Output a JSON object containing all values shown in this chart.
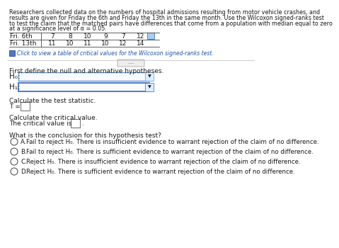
{
  "title_lines": [
    "Researchers collected data on the numbers of hospital admissions resulting from motor vehicle crashes, and",
    "results are given for Friday the 6th and Friday the 13th in the same month. Use the Wilcoxon signed-ranks test",
    "to test the claim that the matched pairs have differences that come from a population with median equal to zero",
    "at a significance level of α = 0.05."
  ],
  "table_row1_label": "Fri. 6th",
  "table_row2_label": "Fri. 13th",
  "table_row1_data": [
    "7",
    "8",
    "10",
    "9",
    "7",
    "12"
  ],
  "table_row2_data": [
    "11",
    "10",
    "11",
    "10",
    "12",
    "14"
  ],
  "click_text": "Click to view a table of critical values for the Wilcoxon signed-ranks test.",
  "hypotheses_intro": "First define the null and alternative hypotheses.",
  "h0_label": "H₀:",
  "h1_label": "H₁:",
  "test_stat_intro": "Calculate the test statistic.",
  "t_eq": "T =",
  "critical_intro": "Calculate the critical value.",
  "critical_value_text": "The critical value is",
  "conclusion_intro": "What is the conclusion for this hypothesis test?",
  "options": [
    [
      "A.",
      "Fail to reject H₀. There is insufficient evidence to warrant rejection of the claim of no difference."
    ],
    [
      "B.",
      "Fail to reject H₀. There is sufficient evidence to warrant rejection of the claim of no difference."
    ],
    [
      "C.",
      "Reject H₀. There is insufficient evidence to warrant rejection of the claim of no difference."
    ],
    [
      "D.",
      "Reject H₀. There is sufficient evidence to warrant rejection of the claim of no difference."
    ]
  ],
  "bg_color": "#ffffff",
  "text_color": "#1a1a1a",
  "link_color": "#2255aa",
  "dropdown_edge_color": "#6699cc",
  "dropdown_fill": "#f8faff",
  "input_box_edge": "#888888",
  "radio_color": "#555555",
  "table_line_color": "#444444",
  "divider_color": "#bbbbbb",
  "icon_fill": "#5577bb",
  "icon_edge": "#2244aa",
  "small_icon_fill": "#aaccee",
  "small_icon_edge": "#5588bb",
  "ellipsis_fill": "#eeeeee",
  "ellipsis_edge": "#aaaaaa",
  "fs_para": 5.8,
  "fs_table": 6.5,
  "fs_body": 6.5,
  "fs_option": 6.2
}
